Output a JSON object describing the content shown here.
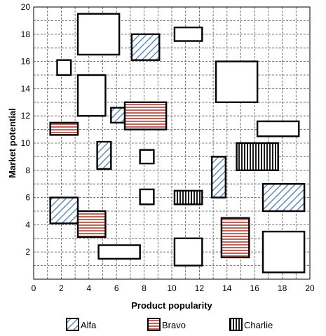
{
  "chart_data": {
    "type": "scatter",
    "subtype": "rectangle-matrix",
    "title": "",
    "xlabel": "Product popularity",
    "ylabel": "Market potential",
    "xlim": [
      0,
      20
    ],
    "ylim": [
      0,
      20
    ],
    "xticks": [
      0,
      2,
      4,
      6,
      8,
      10,
      12,
      14,
      16,
      18,
      20
    ],
    "yticks": [
      2,
      4,
      6,
      8,
      10,
      12,
      14,
      16,
      18,
      20
    ],
    "grid": true,
    "minor_grid_step": 1,
    "legend_position": "bottom",
    "series": [
      {
        "name": "Alfa",
        "pattern": "diagonal-hatch",
        "color": "#4a7ab5",
        "boxes": [
          {
            "x0": 7.1,
            "x1": 9.1,
            "y0": 16.1,
            "y1": 18.0
          },
          {
            "x0": 5.6,
            "x1": 6.6,
            "y0": 11.5,
            "y1": 12.6
          },
          {
            "x0": 4.6,
            "x1": 5.6,
            "y0": 8.1,
            "y1": 10.1
          },
          {
            "x0": 1.2,
            "x1": 3.2,
            "y0": 4.1,
            "y1": 6.0
          },
          {
            "x0": 12.9,
            "x1": 13.9,
            "y0": 6.0,
            "y1": 9.0
          },
          {
            "x0": 16.6,
            "x1": 19.6,
            "y0": 5.0,
            "y1": 7.0
          }
        ]
      },
      {
        "name": "Bravo",
        "pattern": "horizontal-lines",
        "color": "#c0392b",
        "boxes": [
          {
            "x0": 6.6,
            "x1": 9.6,
            "y0": 11.0,
            "y1": 13.0
          },
          {
            "x0": 1.2,
            "x1": 3.2,
            "y0": 10.6,
            "y1": 11.5
          },
          {
            "x0": 3.2,
            "x1": 5.2,
            "y0": 3.1,
            "y1": 5.0
          },
          {
            "x0": 13.6,
            "x1": 15.6,
            "y0": 1.6,
            "y1": 4.5
          }
        ]
      },
      {
        "name": "Charlie",
        "pattern": "vertical-lines",
        "color": "#000000",
        "boxes": [
          {
            "x0": 14.7,
            "x1": 17.7,
            "y0": 8.0,
            "y1": 10.0
          },
          {
            "x0": 10.2,
            "x1": 12.2,
            "y0": 5.5,
            "y1": 6.5
          }
        ]
      },
      {
        "name": "",
        "pattern": "none",
        "color": "#000000",
        "boxes": [
          {
            "x0": 3.2,
            "x1": 6.2,
            "y0": 16.5,
            "y1": 19.5
          },
          {
            "x0": 10.2,
            "x1": 12.2,
            "y0": 17.5,
            "y1": 18.5
          },
          {
            "x0": 1.7,
            "x1": 2.7,
            "y0": 15.0,
            "y1": 16.1
          },
          {
            "x0": 3.2,
            "x1": 5.2,
            "y0": 12.0,
            "y1": 15.0
          },
          {
            "x0": 13.2,
            "x1": 16.2,
            "y0": 13.0,
            "y1": 16.0
          },
          {
            "x0": 16.2,
            "x1": 19.2,
            "y0": 10.5,
            "y1": 11.6
          },
          {
            "x0": 7.7,
            "x1": 8.7,
            "y0": 8.5,
            "y1": 9.5
          },
          {
            "x0": 7.7,
            "x1": 8.7,
            "y0": 5.5,
            "y1": 6.6
          },
          {
            "x0": 4.7,
            "x1": 7.7,
            "y0": 1.5,
            "y1": 2.5
          },
          {
            "x0": 10.2,
            "x1": 12.2,
            "y0": 1.0,
            "y1": 3.0
          },
          {
            "x0": 16.6,
            "x1": 19.6,
            "y0": 0.5,
            "y1": 3.5
          }
        ]
      }
    ]
  }
}
